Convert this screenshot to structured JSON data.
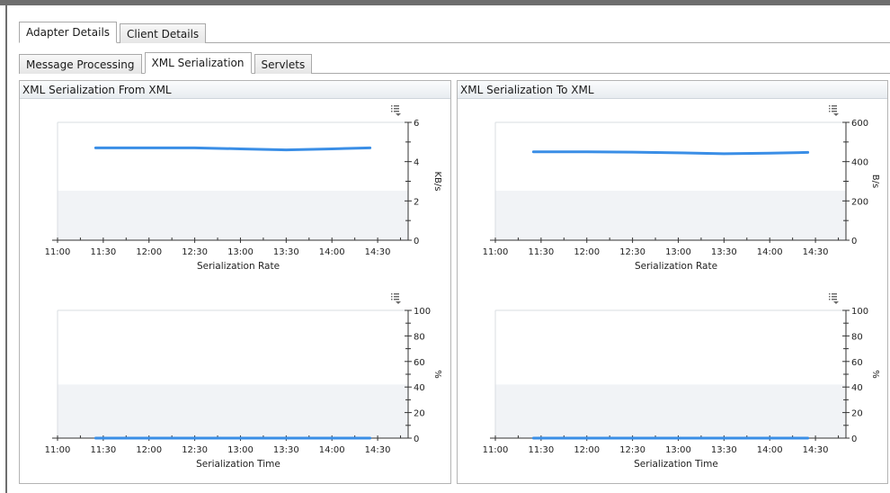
{
  "colors": {
    "series": "#3a8ee6",
    "band": "#f1f3f6",
    "grid": "#d9dde2"
  },
  "top_tabs": [
    {
      "label": "Adapter Details",
      "active": true
    },
    {
      "label": "Client Details",
      "active": false
    }
  ],
  "sub_tabs": [
    {
      "label": "Message Processing",
      "active": false
    },
    {
      "label": "XML Serialization",
      "active": true
    },
    {
      "label": "Servlets",
      "active": false
    }
  ],
  "panels": [
    {
      "title": "XML Serialization From XML"
    },
    {
      "title": "XML Serialization To XML"
    }
  ],
  "menu_icon": "list-options-icon",
  "chart_data": [
    {
      "type": "line",
      "panel": "XML Serialization From XML",
      "xlabel": "Serialization Rate",
      "ylabel": "KB/s",
      "y_axis_side": "right",
      "x_ticks": [
        "11:00",
        "11:30",
        "12:00",
        "12:30",
        "13:00",
        "13:30",
        "14:00",
        "14:30"
      ],
      "xlim": [
        "11:00",
        "14:50"
      ],
      "ylim": [
        0,
        6
      ],
      "y_ticks": [
        0,
        2,
        4,
        6
      ],
      "series": [
        {
          "x": [
            "11:25",
            "12:00",
            "12:30",
            "13:00",
            "13:30",
            "14:00",
            "14:25"
          ],
          "values": [
            4.7,
            4.7,
            4.7,
            4.65,
            4.6,
            4.65,
            4.7
          ]
        }
      ]
    },
    {
      "type": "line",
      "panel": "XML Serialization From XML",
      "xlabel": "Serialization Time",
      "ylabel": "%",
      "y_axis_side": "right",
      "x_ticks": [
        "11:00",
        "11:30",
        "12:00",
        "12:30",
        "13:00",
        "13:30",
        "14:00",
        "14:30"
      ],
      "xlim": [
        "11:00",
        "14:50"
      ],
      "ylim": [
        0,
        100
      ],
      "y_ticks": [
        0,
        20,
        40,
        60,
        80,
        100
      ],
      "series": [
        {
          "x": [
            "11:25",
            "12:00",
            "12:30",
            "13:00",
            "13:30",
            "14:00",
            "14:25"
          ],
          "values": [
            0,
            0,
            0,
            0,
            0,
            0,
            0
          ]
        }
      ]
    },
    {
      "type": "line",
      "panel": "XML Serialization To XML",
      "xlabel": "Serialization Rate",
      "ylabel": "B/s",
      "y_axis_side": "right",
      "x_ticks": [
        "11:00",
        "11:30",
        "12:00",
        "12:30",
        "13:00",
        "13:30",
        "14:00",
        "14:30"
      ],
      "xlim": [
        "11:00",
        "14:50"
      ],
      "ylim": [
        0,
        600
      ],
      "y_ticks": [
        0,
        200,
        400,
        600
      ],
      "series": [
        {
          "x": [
            "11:25",
            "12:00",
            "12:30",
            "13:00",
            "13:30",
            "14:00",
            "14:25"
          ],
          "values": [
            450,
            450,
            448,
            445,
            440,
            443,
            447
          ]
        }
      ]
    },
    {
      "type": "line",
      "panel": "XML Serialization To XML",
      "xlabel": "Serialization Time",
      "ylabel": "%",
      "y_axis_side": "right",
      "x_ticks": [
        "11:00",
        "11:30",
        "12:00",
        "12:30",
        "13:00",
        "13:30",
        "14:00",
        "14:30"
      ],
      "xlim": [
        "11:00",
        "14:50"
      ],
      "ylim": [
        0,
        100
      ],
      "y_ticks": [
        0,
        20,
        40,
        60,
        80,
        100
      ],
      "series": [
        {
          "x": [
            "11:25",
            "12:00",
            "12:30",
            "13:00",
            "13:30",
            "14:00",
            "14:25"
          ],
          "values": [
            0,
            0,
            0,
            0,
            0,
            0,
            0
          ]
        }
      ]
    }
  ]
}
